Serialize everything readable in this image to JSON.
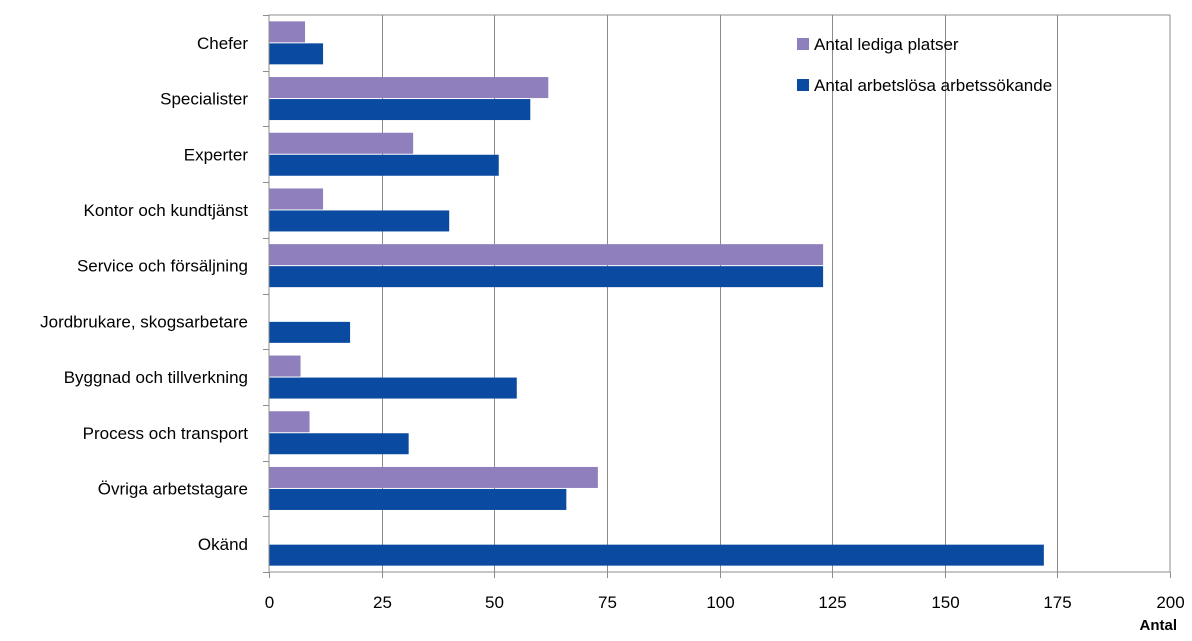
{
  "chart_data": {
    "type": "bar",
    "orientation": "horizontal",
    "categories": [
      "Chefer",
      "Specialister",
      "Experter",
      "Kontor och kundtjänst",
      "Service och försäljning",
      "Jordbrukare, skogsarbetare",
      "Byggnad och tillverkning",
      "Process och transport",
      "Övriga arbetstagare",
      "Okänd"
    ],
    "series": [
      {
        "name": "Antal lediga platser",
        "color": "#8f7fbd",
        "values": [
          8,
          62,
          32,
          12,
          123,
          0,
          7,
          9,
          73,
          0
        ]
      },
      {
        "name": "Antal arbetslösa arbetssökande",
        "color": "#0a4aa0",
        "values": [
          12,
          58,
          51,
          40,
          123,
          18,
          55,
          31,
          66,
          172
        ]
      }
    ],
    "xlim": [
      0,
      200
    ],
    "xticks": [
      0,
      25,
      50,
      75,
      100,
      125,
      150,
      175,
      200
    ],
    "xlabel": "Antal",
    "ylabel": "",
    "grid": "vertical",
    "legend_position": "top-right"
  }
}
